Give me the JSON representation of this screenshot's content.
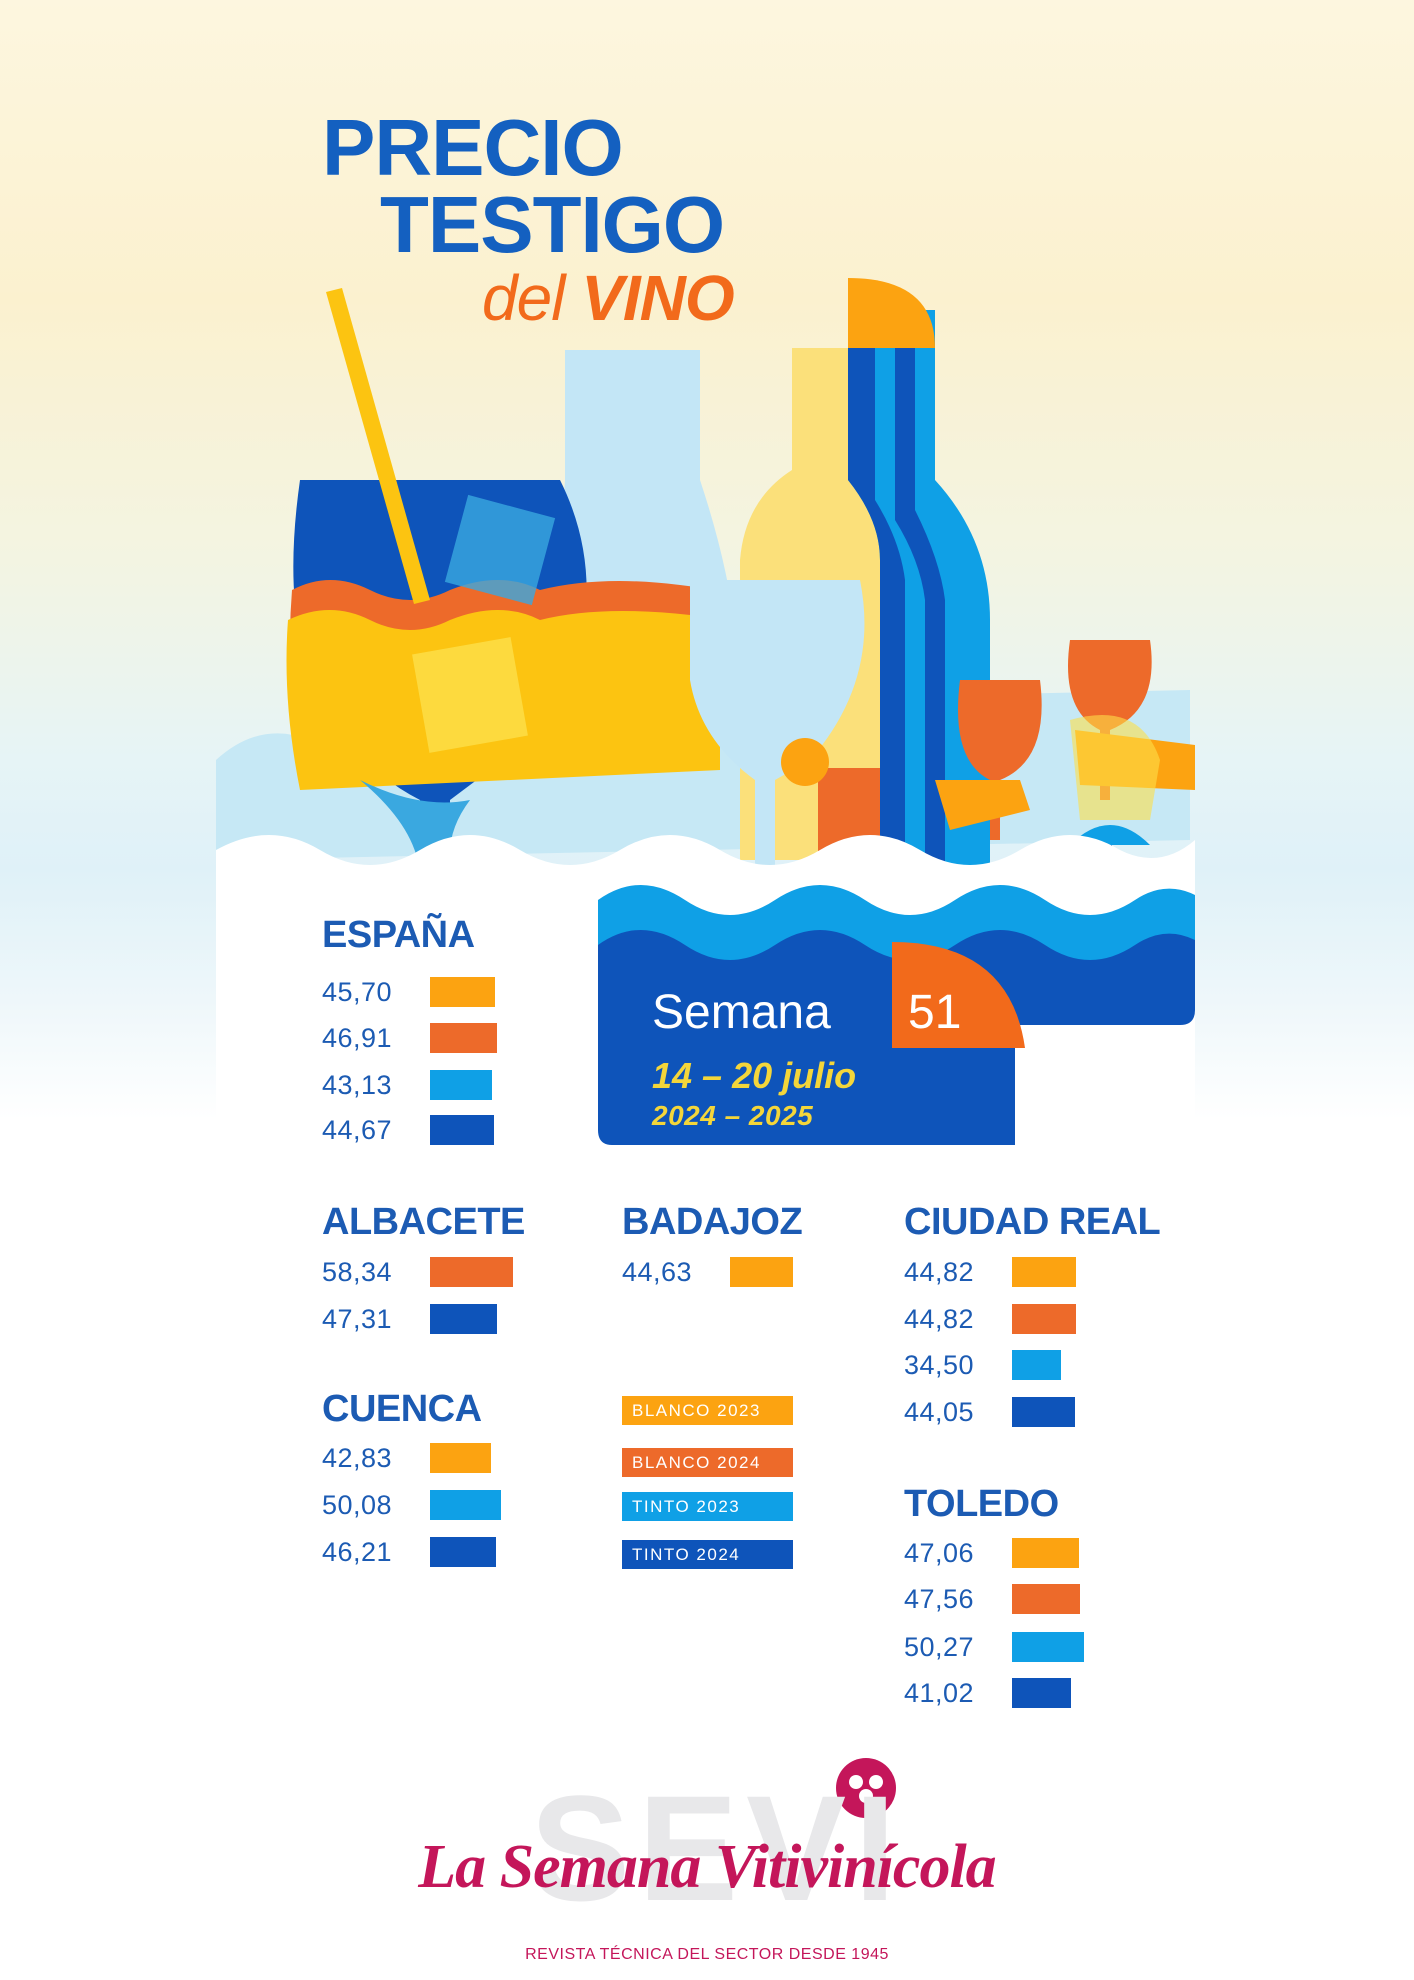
{
  "title": {
    "line1": "PRECIO",
    "line2": "TESTIGO",
    "line3_a": "del",
    "line3_b": "VINO"
  },
  "week": {
    "label": "Semana",
    "number": "51",
    "dates": "14 – 20 julio",
    "season": "2024 – 2025"
  },
  "regions": {
    "espana": {
      "name": "ESPAÑA",
      "rows": [
        {
          "value": "45,70"
        },
        {
          "value": "46,91"
        },
        {
          "value": "43,13"
        },
        {
          "value": "44,67"
        }
      ]
    },
    "albacete": {
      "name": "ALBACETE",
      "rows": [
        {
          "value": "58,34"
        },
        {
          "value": "47,31"
        }
      ]
    },
    "badajoz": {
      "name": "BADAJOZ",
      "rows": [
        {
          "value": "44,63"
        }
      ]
    },
    "ciudad_real": {
      "name": "CIUDAD REAL",
      "rows": [
        {
          "value": "44,82"
        },
        {
          "value": "44,82"
        },
        {
          "value": "34,50"
        },
        {
          "value": "44,05"
        }
      ]
    },
    "cuenca": {
      "name": "CUENCA",
      "rows": [
        {
          "value": "42,83"
        },
        {
          "value": "50,08"
        },
        {
          "value": "46,21"
        }
      ]
    },
    "toledo": {
      "name": "TOLEDO",
      "rows": [
        {
          "value": "47,06"
        },
        {
          "value": "47,56"
        },
        {
          "value": "50,27"
        },
        {
          "value": "41,02"
        }
      ]
    }
  },
  "legend": [
    {
      "label": "BLANCO 2023",
      "color": "#fca311"
    },
    {
      "label": "BLANCO 2024",
      "color": "#ed6a2a"
    },
    {
      "label": "TINTO 2023",
      "color": "#0fa0e6"
    },
    {
      "label": "TINTO 2024",
      "color": "#0e54ba"
    }
  ],
  "brand": {
    "logo_text": "SEVI",
    "name": "La Semana Vitivinícola",
    "tagline": "REVISTA TÉCNICA DEL SECTOR DESDE 1945"
  },
  "colors": {
    "title_blue": "#1460c0",
    "orange": "#f26a1b",
    "magenta": "#c4165a",
    "date_yellow": "#f4d63a"
  }
}
